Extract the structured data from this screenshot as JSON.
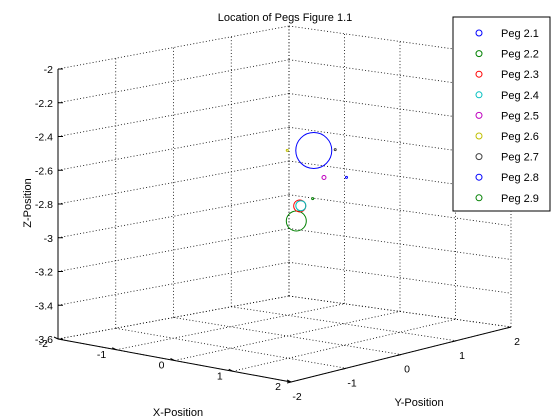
{
  "chart_data": {
    "type": "scatter",
    "title": "Location of Pegs Figure 1.1",
    "xlabel": "X-Position",
    "ylabel": "Y-Position",
    "zlabel": "Z-Position",
    "xlim": [
      -2,
      2
    ],
    "ylim": [
      -2,
      2
    ],
    "zlim": [
      -3.6,
      -2
    ],
    "x_ticks": [
      "-2",
      "-1",
      "0",
      "1",
      "2"
    ],
    "y_ticks": [
      "-2",
      "-1",
      "0",
      "1",
      "2"
    ],
    "z_ticks": [
      "-2",
      "-2.2",
      "-2.4",
      "-2.6",
      "-2.8",
      "-3",
      "-3.2",
      "-3.4",
      "-3.6"
    ],
    "grid": true,
    "legend_position": "top-right",
    "marker": "circle",
    "series": [
      {
        "name": "Peg 2.1",
        "color": "#0000ff",
        "point": [
          0.12,
          0.35,
          -2.52
        ],
        "marker_size": 18
      },
      {
        "name": "Peg 2.2",
        "color": "#008000",
        "point": [
          0.08,
          0.08,
          -2.92
        ],
        "marker_size": 10
      },
      {
        "name": "Peg 2.3",
        "color": "#ff0000",
        "point": [
          0.12,
          0.1,
          -2.83
        ],
        "marker_size": 6
      },
      {
        "name": "Peg 2.4",
        "color": "#00bfbf",
        "point": [
          0.12,
          0.12,
          -2.83
        ],
        "marker_size": 5
      },
      {
        "name": "Peg 2.5",
        "color": "#bf00bf",
        "point": [
          0.3,
          0.35,
          -2.67
        ],
        "marker_size": 2
      },
      {
        "name": "Peg 2.6",
        "color": "#bfbf00",
        "point": [
          0.0,
          0.0,
          -2.5
        ],
        "marker_size": 1
      },
      {
        "name": "Peg 2.7",
        "color": "#404040",
        "point": [
          0.3,
          0.55,
          -2.52
        ],
        "marker_size": 1
      },
      {
        "name": "Peg 2.8",
        "color": "#0000ff",
        "point": [
          0.45,
          0.6,
          -2.68
        ],
        "marker_size": 1
      },
      {
        "name": "Peg 2.9",
        "color": "#008000",
        "point": [
          0.15,
          0.3,
          -2.8
        ],
        "marker_size": 1
      }
    ]
  }
}
